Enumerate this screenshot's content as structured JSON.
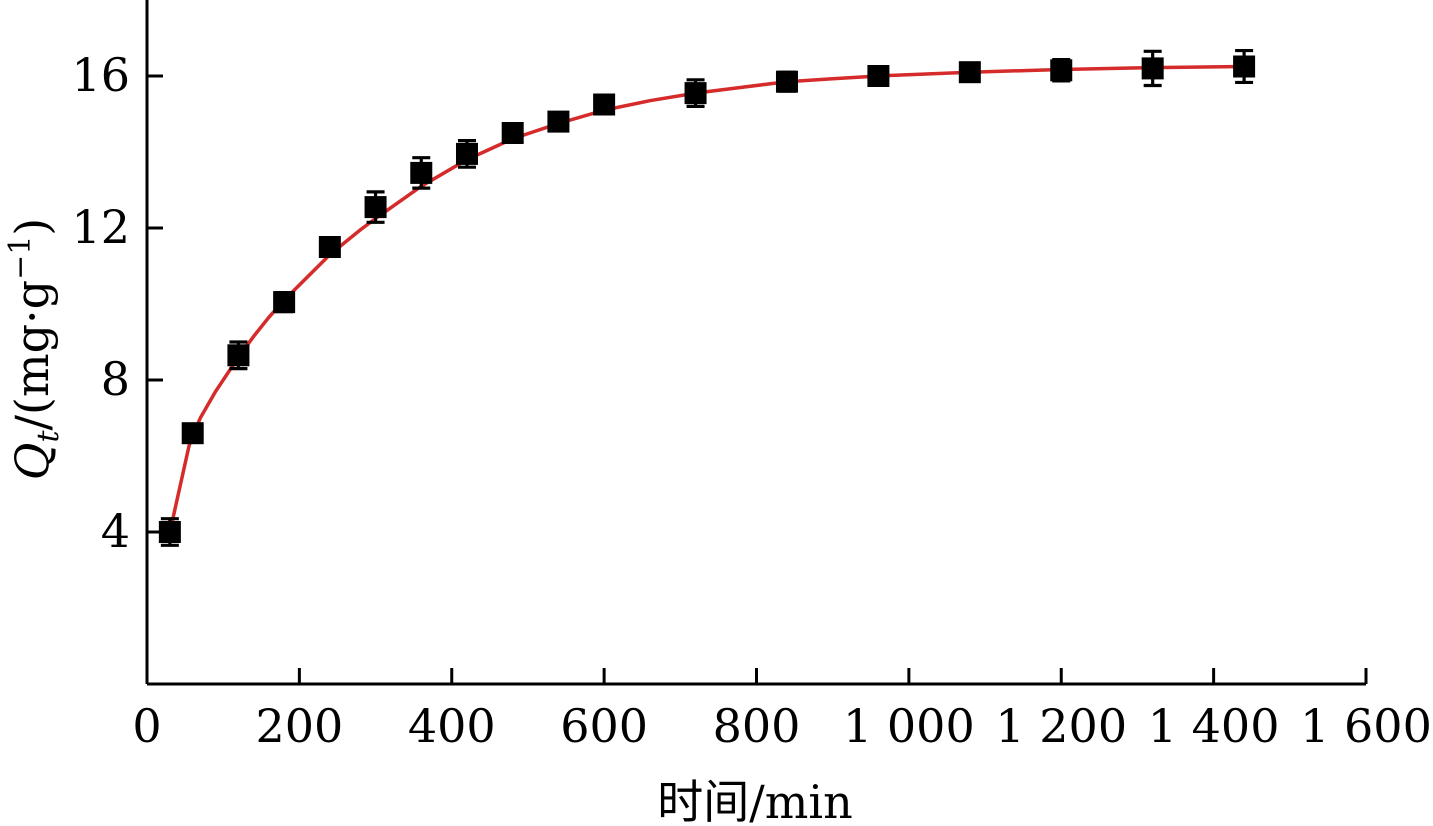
{
  "chart_data": {
    "type": "scatter",
    "xlabel": "时间/min",
    "ylabel": {
      "main": "Q",
      "subscript": "t",
      "unit": "/(mg·g",
      "superscript": "−1",
      "close": ")"
    },
    "xlim": [
      0,
      1600
    ],
    "ylim": [
      0,
      18
    ],
    "x_ticks": [
      {
        "value": 0,
        "label": "0"
      },
      {
        "value": 200,
        "label": "200"
      },
      {
        "value": 400,
        "label": "400"
      },
      {
        "value": 600,
        "label": "600"
      },
      {
        "value": 800,
        "label": "800"
      },
      {
        "value": 1000,
        "label": "1 000"
      },
      {
        "value": 1200,
        "label": "1 200"
      },
      {
        "value": 1400,
        "label": "1 400"
      },
      {
        "value": 1600,
        "label": "1 600"
      }
    ],
    "y_ticks": [
      {
        "value": 4,
        "label": "4"
      },
      {
        "value": 8,
        "label": "8"
      },
      {
        "value": 12,
        "label": "12"
      },
      {
        "value": 16,
        "label": "16"
      }
    ],
    "series": [
      {
        "kind": "points",
        "marker": "square",
        "color": "#000000",
        "x": [
          30,
          60,
          120,
          180,
          240,
          300,
          360,
          420,
          480,
          540,
          600,
          720,
          840,
          960,
          1080,
          1200,
          1320,
          1440
        ],
        "y": [
          4.0,
          6.6,
          8.65,
          10.05,
          11.5,
          12.55,
          13.45,
          13.95,
          14.5,
          14.8,
          15.25,
          15.55,
          15.85,
          16.0,
          16.1,
          16.15,
          16.2,
          16.25
        ],
        "err": [
          0.35,
          0.15,
          0.35,
          0.25,
          0.12,
          0.4,
          0.4,
          0.35,
          0.12,
          0.12,
          0.18,
          0.35,
          0.25,
          0.15,
          0.2,
          0.28,
          0.45,
          0.42
        ]
      },
      {
        "kind": "fit-curve",
        "color": "#d52b2b",
        "x": [
          30,
          40,
          50,
          55,
          60,
          70,
          80,
          90,
          100,
          120,
          140,
          160,
          180,
          200,
          240,
          280,
          300,
          360,
          420,
          480,
          540,
          600,
          660,
          720,
          780,
          840,
          900,
          960,
          1080,
          1200,
          1320,
          1440
        ],
        "y": [
          4.0,
          4.9,
          5.8,
          6.25,
          6.55,
          7.0,
          7.35,
          7.7,
          8.0,
          8.6,
          9.15,
          9.65,
          10.1,
          10.5,
          11.3,
          11.95,
          12.25,
          13.1,
          13.8,
          14.35,
          14.75,
          15.1,
          15.35,
          15.55,
          15.7,
          15.85,
          15.93,
          16.0,
          16.1,
          16.17,
          16.22,
          16.25
        ]
      }
    ],
    "grid": false,
    "legend": "none"
  }
}
